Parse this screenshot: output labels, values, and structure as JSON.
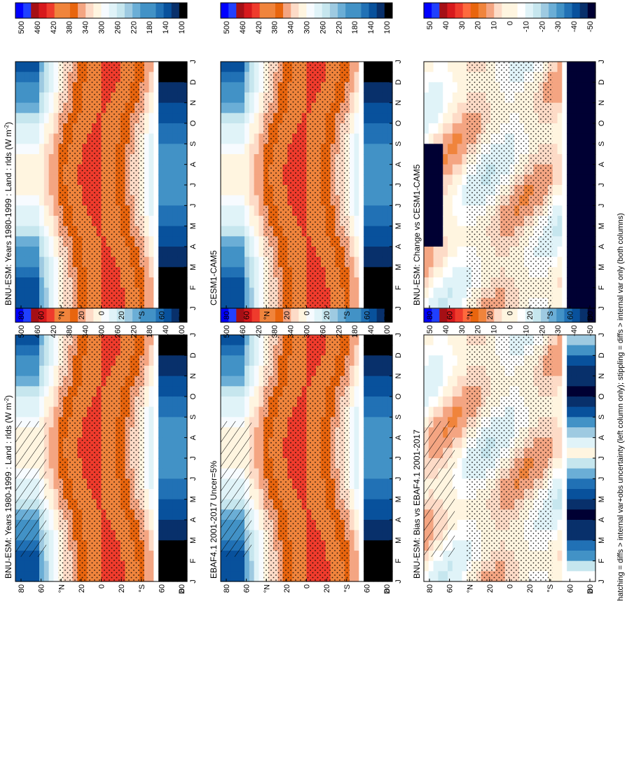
{
  "figure_caption": "hatching = diffs > internal var+obs uncertainty (left column only); stippling = diffs > internal var only (both columns)",
  "colors": {
    "abs_scale": [
      "#000000",
      "#08306b",
      "#08519c",
      "#2171b5",
      "#4292c6",
      "#6baed6",
      "#9ecae1",
      "#c6e6ee",
      "#e0f3f8",
      "#f7fbff",
      "#fff5e0",
      "#fddbc7",
      "#f4a582",
      "#f0843c",
      "#e8650e",
      "#ff6a3d",
      "#ef3b2c",
      "#d7191c",
      "#b2182b",
      "#a50f15",
      "#2040ff",
      "#0000ff"
    ],
    "diff_scale": [
      "#000033",
      "#08306b",
      "#08519c",
      "#2171b5",
      "#4292c6",
      "#6baed6",
      "#9ecae1",
      "#c6e6ee",
      "#e0f3f8",
      "#f7fbff",
      "#fff5e0",
      "#fddbc7",
      "#f4a582",
      "#f0843c",
      "#e8650e",
      "#ff6a3d",
      "#ef3b2c",
      "#d7191c",
      "#b2182b",
      "#a50f15",
      "#2040ff",
      "#0000ff"
    ]
  },
  "chart_data": [
    {
      "type": "heatmap",
      "id": "bnu_hist_left",
      "title": "BNU-ESM: Years 1980-1999 : Land : rlds (W m",
      "title_sup": "-2",
      "title_end": ")",
      "x_axis": "latitude",
      "xlabels": [
        "80",
        "60",
        "°N",
        "20",
        "0",
        "20",
        "°S",
        "60",
        "80"
      ],
      "x_ends": [
        "D",
        "J"
      ],
      "months": [
        "J",
        "F",
        "M",
        "A",
        "M",
        "J",
        "J",
        "A",
        "S",
        "O",
        "N",
        "D",
        "J"
      ],
      "colorbar": {
        "ticks": [
          "500",
          "460",
          "420",
          "380",
          "340",
          "300",
          "260",
          "220",
          "180",
          "140",
          "100"
        ]
      },
      "hatching": true,
      "stippling": true,
      "field": "absolute"
    },
    {
      "type": "heatmap",
      "id": "bnu_hist_right",
      "title": "BNU-ESM: Years 1980-1999 : Land : rlds (W m",
      "title_sup": "-2",
      "title_end": ")",
      "xlabels": [
        "80",
        "60",
        "°N",
        "20",
        "0",
        "20",
        "°S",
        "60",
        "80"
      ],
      "x_ends": [
        "D",
        "J"
      ],
      "months": [
        "J",
        "F",
        "M",
        "A",
        "M",
        "J",
        "J",
        "A",
        "S",
        "O",
        "N",
        "D",
        "J"
      ],
      "colorbar": {
        "ticks": [
          "500",
          "460",
          "420",
          "380",
          "340",
          "300",
          "260",
          "220",
          "180",
          "140",
          "100"
        ]
      },
      "hatching": false,
      "stippling": true,
      "field": "absolute"
    },
    {
      "type": "heatmap",
      "id": "ebaf_obs",
      "title": "EBAF4.1 2001-2017 Uncer=5%",
      "xlabels": [
        "80",
        "60",
        "°N",
        "20",
        "0",
        "20",
        "°S",
        "60",
        "80"
      ],
      "x_ends": [
        "D",
        "J"
      ],
      "months": [
        "J",
        "F",
        "M",
        "A",
        "M",
        "J",
        "J",
        "A",
        "S",
        "O",
        "N",
        "D",
        "J"
      ],
      "colorbar": {
        "ticks": [
          "500",
          "460",
          "420",
          "380",
          "340",
          "300",
          "260",
          "220",
          "180",
          "140",
          "100"
        ]
      },
      "hatching": true,
      "stippling": true,
      "field": "absolute"
    },
    {
      "type": "heatmap",
      "id": "cesm_ref",
      "title": "CESM1-CAM5",
      "xlabels": [
        "80",
        "60",
        "°N",
        "20",
        "0",
        "20",
        "°S",
        "60",
        "80"
      ],
      "x_ends": [
        "D",
        "J"
      ],
      "months": [
        "J",
        "F",
        "M",
        "A",
        "M",
        "J",
        "J",
        "A",
        "S",
        "O",
        "N",
        "D",
        "J"
      ],
      "colorbar": {
        "ticks": [
          "500",
          "460",
          "420",
          "380",
          "340",
          "300",
          "260",
          "220",
          "180",
          "140",
          "100"
        ]
      },
      "hatching": false,
      "stippling": true,
      "field": "absolute"
    },
    {
      "type": "heatmap",
      "id": "bias_vs_ebaf",
      "title": "BNU-ESM: Bias vs EBAF4.1 2001-2017",
      "xlabels": [
        "80",
        "60",
        "°N",
        "20",
        "0",
        "20",
        "°S",
        "60",
        "80"
      ],
      "x_ends": [
        "D",
        "J"
      ],
      "months": [
        "J",
        "F",
        "M",
        "A",
        "M",
        "J",
        "J",
        "A",
        "S",
        "O",
        "N",
        "D",
        "J"
      ],
      "colorbar": {
        "ticks": [
          "50",
          "40",
          "30",
          "20",
          "10",
          "0",
          "-10",
          "-20",
          "-30",
          "-40",
          "-50"
        ]
      },
      "hatching": true,
      "stippling": true,
      "field": "bias"
    },
    {
      "type": "heatmap",
      "id": "change_vs_cesm",
      "title": "BNU-ESM: Change vs CESM1-CAM5",
      "xlabels": [
        "80",
        "60",
        "°N",
        "20",
        "0",
        "20",
        "°S",
        "60",
        "80"
      ],
      "x_ends": [
        "D",
        "J"
      ],
      "months": [
        "J",
        "F",
        "M",
        "A",
        "M",
        "J",
        "J",
        "A",
        "S",
        "O",
        "N",
        "D",
        "J"
      ],
      "colorbar": {
        "ticks": [
          "50",
          "40",
          "30",
          "20",
          "10",
          "0",
          "-10",
          "-20",
          "-30",
          "-40",
          "-50"
        ]
      },
      "hatching": false,
      "stippling": true,
      "field": "change"
    }
  ]
}
